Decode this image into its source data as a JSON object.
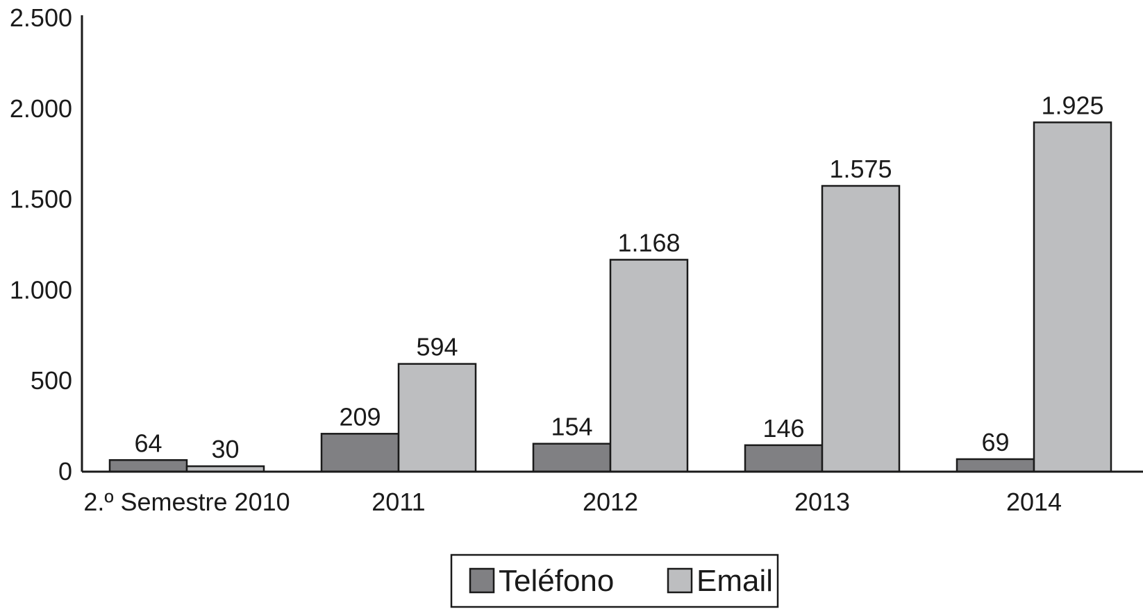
{
  "chart_data": {
    "type": "bar",
    "categories": [
      "2.º Semestre 2010",
      "2011",
      "2012",
      "2013",
      "2014"
    ],
    "series": [
      {
        "name": "Teléfono",
        "values": [
          64,
          209,
          154,
          146,
          69
        ],
        "labels": [
          "64",
          "209",
          "154",
          "146",
          "69"
        ],
        "color": "#808083"
      },
      {
        "name": "Email",
        "values": [
          30,
          594,
          1168,
          1575,
          1925
        ],
        "labels": [
          "30",
          "594",
          "1.168",
          "1.575",
          "1.925"
        ],
        "color": "#bdbec0"
      }
    ],
    "yticks": [
      {
        "value": 0,
        "label": "0"
      },
      {
        "value": 500,
        "label": "500"
      },
      {
        "value": 1000,
        "label": "1.000"
      },
      {
        "value": 1500,
        "label": "1.500"
      },
      {
        "value": 2000,
        "label": "2.000"
      },
      {
        "value": 2500,
        "label": "2.500"
      }
    ],
    "ylim": [
      0,
      2500
    ],
    "grid": false,
    "legend": {
      "position": "bottom-center",
      "entries": [
        "Teléfono",
        "Email"
      ]
    },
    "title": "",
    "xlabel": "",
    "ylabel": ""
  }
}
